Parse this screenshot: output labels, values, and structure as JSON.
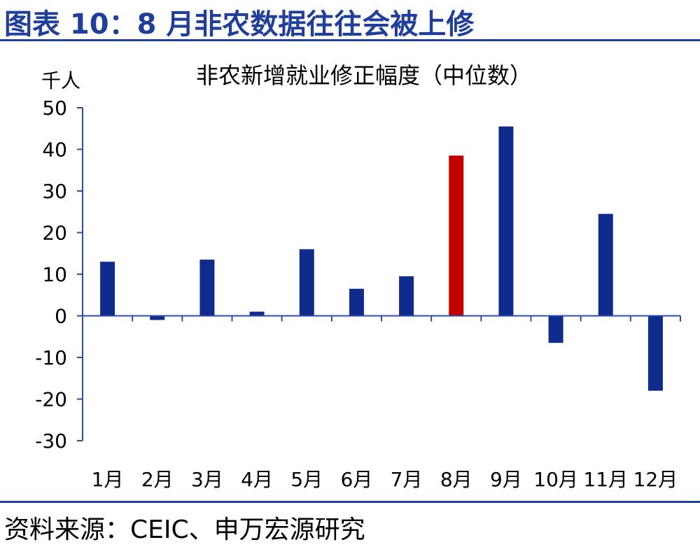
{
  "figure": {
    "title": "图表 10：8 月非农数据往往会被上修",
    "source": "资料来源：CEIC、申万宏源研究"
  },
  "colors": {
    "accent": "#1F3F9A",
    "bar": "#0F2C8C",
    "highlight": "#C00000",
    "axis": "#2B4CA8"
  },
  "chart_data": {
    "type": "bar",
    "title": "非农新增就业修正幅度（中位数）",
    "ylabel": "千人",
    "xlabel": "",
    "categories": [
      "1月",
      "2月",
      "3月",
      "4月",
      "5月",
      "6月",
      "7月",
      "8月",
      "9月",
      "10月",
      "11月",
      "12月"
    ],
    "values": [
      13,
      -1,
      13.5,
      1,
      16,
      6.5,
      9.5,
      38.5,
      45.5,
      -6.5,
      24.5,
      -18
    ],
    "highlight_category": "8月",
    "ylim": [
      -30,
      50
    ],
    "yticks": [
      50,
      40,
      30,
      20,
      10,
      0,
      -10,
      -20,
      -30
    ],
    "grid": false,
    "legend": "none"
  }
}
